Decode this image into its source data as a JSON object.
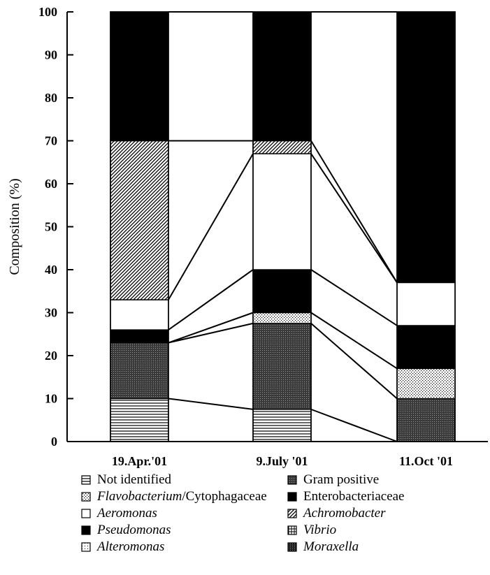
{
  "chart_data": {
    "type": "bar",
    "stacked": true,
    "ylabel": "Composition (%)",
    "xlabel": "",
    "ylim": [
      0,
      100
    ],
    "yticks": [
      "0",
      "10",
      "20",
      "30",
      "40",
      "50",
      "60",
      "70",
      "80",
      "90",
      "100"
    ],
    "categories": [
      "19.Apr.'01",
      "9.July '01",
      "11.Oct '01"
    ],
    "grid": false,
    "legend_position": "bottom",
    "connector_lines": true,
    "series": [
      {
        "name": "Not identified",
        "pattern": "hlines",
        "values": [
          10,
          7.5,
          0
        ]
      },
      {
        "name": "Gram positive",
        "pattern": "dark-grid",
        "values": [
          13,
          20,
          10
        ]
      },
      {
        "name": "Flavobacterium/Cytophagaceae",
        "pattern": "dots",
        "values": [
          0,
          2.5,
          7
        ]
      },
      {
        "name": "Enterobacteriaceae",
        "pattern": "solid",
        "values": [
          3,
          10,
          10
        ]
      },
      {
        "name": "Aeromonas",
        "pattern": "white",
        "values": [
          7,
          27,
          10
        ]
      },
      {
        "name": "Achromobacter",
        "pattern": "diagonal",
        "values": [
          37,
          3,
          0
        ]
      },
      {
        "name": "Pseudomonas",
        "pattern": "solid",
        "values": [
          30,
          30,
          63
        ]
      }
    ]
  },
  "legend": {
    "items": [
      {
        "parts": [
          {
            "text": "Not identified",
            "italic": false
          }
        ],
        "pattern": "hlines"
      },
      {
        "parts": [
          {
            "text": "Gram positive",
            "italic": false
          }
        ],
        "pattern": "dark-grid"
      },
      {
        "parts": [
          {
            "text": "Flavobacterium",
            "italic": true
          },
          {
            "text": "/Cytophagaceae",
            "italic": false
          }
        ],
        "pattern": "dots"
      },
      {
        "parts": [
          {
            "text": "Enterobacteriaceae",
            "italic": false
          }
        ],
        "pattern": "solid"
      },
      {
        "parts": [
          {
            "text": "Aeromonas",
            "italic": true
          }
        ],
        "pattern": "white"
      },
      {
        "parts": [
          {
            "text": "Achromobacter",
            "italic": true
          }
        ],
        "pattern": "diagonal"
      },
      {
        "parts": [
          {
            "text": "Pseudomonas",
            "italic": true
          }
        ],
        "pattern": "solid"
      },
      {
        "parts": [
          {
            "text": "Vibrio",
            "italic": true
          }
        ],
        "pattern": "cross"
      },
      {
        "parts": [
          {
            "text": "Alteromonas",
            "italic": true
          }
        ],
        "pattern": "light-dots"
      },
      {
        "parts": [
          {
            "text": "Moraxella",
            "italic": true
          }
        ],
        "pattern": "dark-dots"
      }
    ]
  }
}
